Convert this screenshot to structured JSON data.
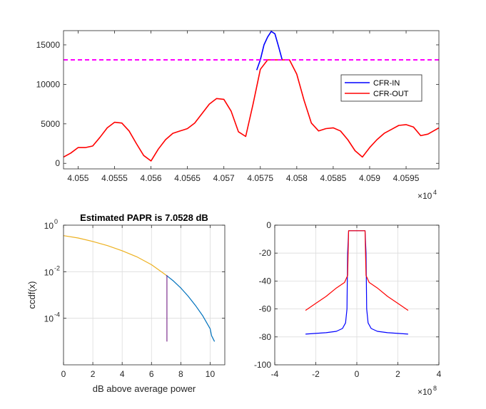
{
  "chart_data": [
    {
      "type": "line",
      "title": "",
      "xlabel": "",
      "ylabel": "",
      "x_exponent": "×10",
      "x_exponent_power": "4",
      "xlim": [
        4.0548,
        4.05995
      ],
      "ylim": [
        -700,
        16800
      ],
      "xticks": [
        4.055,
        4.0555,
        4.056,
        4.0565,
        4.057,
        4.0575,
        4.058,
        4.0585,
        4.059,
        4.0595
      ],
      "xtick_labels": [
        "4.055",
        "4.0555",
        "4.056",
        "4.0565",
        "4.057",
        "4.0575",
        "4.058",
        "4.0585",
        "4.059",
        "4.0595"
      ],
      "yticks": [
        0,
        5000,
        10000,
        15000
      ],
      "ytick_labels": [
        "0",
        "5000",
        "10000",
        "15000"
      ],
      "legend": {
        "position": "right",
        "entries": [
          "CFR-IN",
          "CFR-OUT"
        ]
      },
      "threshold": {
        "y": 13100,
        "color": "#ff00ff",
        "style": "dashed"
      },
      "series": [
        {
          "name": "CFR-IN",
          "color": "#0000ff",
          "x": [
            4.05745,
            4.0575,
            4.05755,
            4.0576,
            4.05765,
            4.0577,
            4.05775,
            4.0578
          ],
          "y": [
            11800,
            13100,
            15000,
            16000,
            16700,
            16400,
            14800,
            13100
          ]
        },
        {
          "name": "CFR-OUT",
          "color": "#ff0000",
          "x": [
            4.0548,
            4.0549,
            4.055,
            4.0551,
            4.0552,
            4.0553,
            4.0554,
            4.0555,
            4.0556,
            4.0557,
            4.0558,
            4.0559,
            4.056,
            4.0561,
            4.0562,
            4.0563,
            4.0564,
            4.0565,
            4.0566,
            4.0567,
            4.0568,
            4.0569,
            4.057,
            4.0571,
            4.0572,
            4.0573,
            4.0574,
            4.0575,
            4.0576,
            4.0577,
            4.0578,
            4.0579,
            4.058,
            4.0581,
            4.0582,
            4.0583,
            4.0584,
            4.0585,
            4.0586,
            4.0587,
            4.0588,
            4.0589,
            4.059,
            4.0591,
            4.0592,
            4.0593,
            4.0594,
            4.0595,
            4.0596,
            4.0597,
            4.0598,
            4.05995
          ],
          "y": [
            800,
            1300,
            2000,
            2000,
            2200,
            3300,
            4500,
            5200,
            5100,
            4100,
            2500,
            1000,
            300,
            1800,
            3000,
            3800,
            4100,
            4400,
            5100,
            6300,
            7500,
            8200,
            8100,
            6600,
            4000,
            3400,
            7500,
            11900,
            13100,
            13100,
            13100,
            13100,
            11300,
            8000,
            5100,
            4100,
            4400,
            4500,
            4100,
            3000,
            1600,
            800,
            2000,
            3000,
            3800,
            4300,
            4800,
            4900,
            4600,
            3500,
            3700,
            4500
          ]
        }
      ]
    },
    {
      "type": "line",
      "title": "Estimated PAPR is 7.0528 dB",
      "xlabel": "dB above average power",
      "ylabel": "ccdf(x)",
      "yscale": "log",
      "xlim": [
        0,
        11
      ],
      "ylim": [
        -6,
        0
      ],
      "xticks": [
        0,
        2,
        4,
        6,
        8,
        10
      ],
      "xtick_labels": [
        "0",
        "2",
        "4",
        "6",
        "8",
        "10"
      ],
      "yticks": [
        0,
        -2,
        -4
      ],
      "ytick_labels": [
        "10",
        "10",
        "10"
      ],
      "ytick_exponents": [
        "0",
        "-2",
        "-4"
      ],
      "grid": true,
      "papr_marker": {
        "x": 7.0528,
        "y_from": -5.0,
        "y_to": -2.15,
        "color": "#7e2f8e"
      },
      "series": [
        {
          "color": "#edb120",
          "x": [
            0,
            1,
            2,
            3,
            4,
            5,
            6,
            7
          ],
          "y": [
            -0.45,
            -0.55,
            -0.7,
            -0.88,
            -1.1,
            -1.36,
            -1.7,
            -2.15
          ]
        },
        {
          "color": "#0072bd",
          "x": [
            7,
            7.5,
            8,
            8.5,
            9,
            9.5,
            10,
            10.1,
            10.3
          ],
          "y": [
            -2.15,
            -2.4,
            -2.7,
            -3.05,
            -3.45,
            -3.9,
            -4.45,
            -4.75,
            -5.0
          ]
        }
      ]
    },
    {
      "type": "line",
      "title": "",
      "xlabel": "",
      "ylabel": "",
      "x_exponent": "×10",
      "x_exponent_power": "8",
      "xlim": [
        -4,
        4
      ],
      "ylim": [
        -100,
        0
      ],
      "xticks": [
        -4,
        -2,
        0,
        2,
        4
      ],
      "xtick_labels": [
        "-4",
        "-2",
        "0",
        "2",
        "4"
      ],
      "yticks": [
        0,
        -20,
        -40,
        -60,
        -80,
        -100
      ],
      "ytick_labels": [
        "0",
        "-20",
        "-40",
        "-60",
        "-80",
        "-100"
      ],
      "grid": true,
      "series": [
        {
          "color": "#0000ff",
          "x": [
            -2.5,
            -2,
            -1.5,
            -1,
            -0.7,
            -0.55,
            -0.48,
            -0.45,
            -0.4,
            -0.2,
            0,
            0.2,
            0.4,
            0.45,
            0.48,
            0.55,
            0.7,
            1,
            1.5,
            2,
            2.5
          ],
          "y": [
            -78,
            -77.5,
            -77,
            -76,
            -74,
            -70,
            -60,
            -20,
            -4,
            -4,
            -4,
            -4,
            -4,
            -20,
            -60,
            -70,
            -74,
            -76,
            -77,
            -77.5,
            -78
          ]
        },
        {
          "color": "#ff0000",
          "x": [
            -2.5,
            -2,
            -1.5,
            -1,
            -0.6,
            -0.45,
            -0.4,
            -0.2,
            0,
            0.2,
            0.4,
            0.45,
            0.6,
            1,
            1.5,
            2,
            2.5
          ],
          "y": [
            -61,
            -56,
            -51,
            -45,
            -41,
            -36,
            -4,
            -4,
            -4,
            -4,
            -4,
            -36,
            -41,
            -45,
            -51,
            -56,
            -61
          ]
        }
      ]
    }
  ]
}
